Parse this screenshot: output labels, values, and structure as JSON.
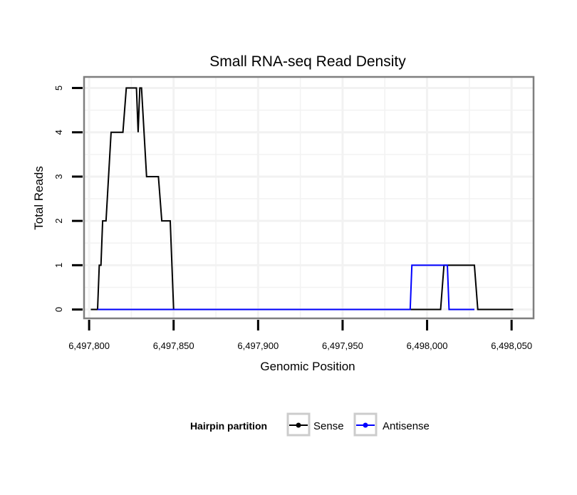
{
  "chart_data": {
    "type": "line",
    "title": "Small RNA-seq Read Density",
    "xlabel": "Genomic Position",
    "ylabel": "Total Reads",
    "xlim": [
      6497797,
      6498063
    ],
    "ylim": [
      -0.2,
      5.25
    ],
    "xticks": [
      6497800,
      6497850,
      6497900,
      6497950,
      6498000,
      6498050
    ],
    "xtick_labels": [
      "6,497,800",
      "6,497,850",
      "6,497,900",
      "6,497,950",
      "6,498,000",
      "6,498,050"
    ],
    "yticks": [
      0,
      1,
      2,
      3,
      4,
      5
    ],
    "ytick_labels": [
      "0",
      "1",
      "2",
      "3",
      "4",
      "5"
    ],
    "x_minor_gridlines": [
      6497825,
      6497875,
      6497925,
      6497975,
      6498025
    ],
    "y_minor_gridlines": [
      0.5,
      1.5,
      2.5,
      3.5,
      4.5
    ],
    "grid": true,
    "legend": {
      "title": "Hairpin partition",
      "position": "bottom"
    },
    "series": [
      {
        "name": "Sense",
        "color": "#000000",
        "x": [
          6497801,
          6497805,
          6497806,
          6497807,
          6497808,
          6497810,
          6497813,
          6497814,
          6497820,
          6497822,
          6497828,
          6497829,
          6497830,
          6497831,
          6497834,
          6497836,
          6497841,
          6497843,
          6497848,
          6497850,
          6497989,
          6498008,
          6498010,
          6498028,
          6498030,
          6498051
        ],
        "values": [
          0,
          0,
          1,
          1,
          2,
          2,
          4,
          4,
          4,
          5,
          5,
          4,
          5,
          5,
          3,
          3,
          3,
          2,
          2,
          0,
          0,
          0,
          1,
          1,
          0,
          0
        ]
      },
      {
        "name": "Antisense",
        "color": "#0000ff",
        "x": [
          6497805,
          6497990,
          6497991,
          6498012,
          6498013,
          6498028
        ],
        "values": [
          0,
          0,
          1,
          1,
          0,
          0
        ]
      }
    ]
  },
  "colors": {
    "panel_border": "#7f7f7f",
    "grid": "#f2f2f2",
    "axis_tick": "#000000",
    "legend_key_border": "#cccccc"
  }
}
